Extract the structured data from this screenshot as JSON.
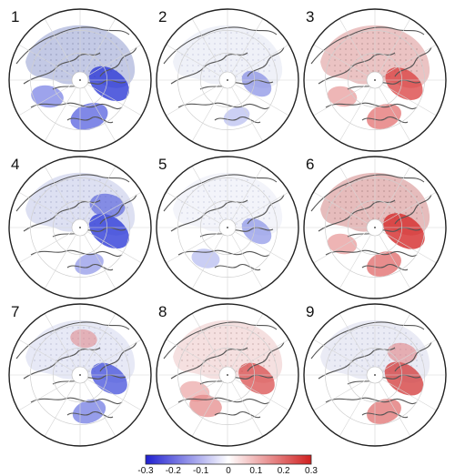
{
  "figure": {
    "panels": [
      {
        "label": "1",
        "ice_fill": "#b9bfe0",
        "dot_color": "#5c6289",
        "anomalies": [
          {
            "dir": "east",
            "color": "#2d3ad6",
            "strength": 0.9
          },
          {
            "dir": "south",
            "color": "#4a56dd",
            "strength": 0.7
          },
          {
            "dir": "west",
            "color": "#5b66df",
            "strength": 0.5
          }
        ]
      },
      {
        "label": "2",
        "ice_fill": "#eceef7",
        "dot_color": "#9aa0c2",
        "anomalies": [
          {
            "dir": "east",
            "color": "#6f79e0",
            "strength": 0.5
          },
          {
            "dir": "south",
            "color": "#9aa2ea",
            "strength": 0.3
          }
        ]
      },
      {
        "label": "3",
        "ice_fill": "#e7b8b8",
        "dot_color": "#7e5c5c",
        "anomalies": [
          {
            "dir": "east",
            "color": "#d93c3c",
            "strength": 0.8
          },
          {
            "dir": "south",
            "color": "#de5a5a",
            "strength": 0.6
          },
          {
            "dir": "west",
            "color": "#e07a7a",
            "strength": 0.4
          }
        ]
      },
      {
        "label": "4",
        "ice_fill": "#d7daf0",
        "dot_color": "#7a80a6",
        "anomalies": [
          {
            "dir": "east",
            "color": "#2f3cd8",
            "strength": 0.9
          },
          {
            "dir": "north-east",
            "color": "#5560dc",
            "strength": 0.6
          },
          {
            "dir": "south",
            "color": "#6b74e0",
            "strength": 0.4
          }
        ]
      },
      {
        "label": "5",
        "ice_fill": "#f1f2f9",
        "dot_color": "#a2a7c4",
        "anomalies": [
          {
            "dir": "east",
            "color": "#7680e2",
            "strength": 0.5
          },
          {
            "dir": "south-west",
            "color": "#9aa2ea",
            "strength": 0.35
          }
        ]
      },
      {
        "label": "6",
        "ice_fill": "#e2b0b0",
        "dot_color": "#7a5656",
        "anomalies": [
          {
            "dir": "east",
            "color": "#d52e2e",
            "strength": 0.95
          },
          {
            "dir": "south",
            "color": "#db5050",
            "strength": 0.6
          },
          {
            "dir": "west",
            "color": "#e07676",
            "strength": 0.4
          }
        ]
      },
      {
        "label": "7",
        "ice_fill": "#e3e5f4",
        "dot_color": "#8a90b4",
        "anomalies": [
          {
            "dir": "east",
            "color": "#3c48da",
            "strength": 0.75
          },
          {
            "dir": "south",
            "color": "#5964dd",
            "strength": 0.55
          },
          {
            "dir": "north",
            "color": "#e07a7a",
            "strength": 0.3
          }
        ]
      },
      {
        "label": "8",
        "ice_fill": "#f3dada",
        "dot_color": "#8c6a6a",
        "anomalies": [
          {
            "dir": "east",
            "color": "#d84646",
            "strength": 0.75
          },
          {
            "dir": "south-west",
            "color": "#e07070",
            "strength": 0.5
          },
          {
            "dir": "west",
            "color": "#e58a8a",
            "strength": 0.4
          }
        ]
      },
      {
        "label": "9",
        "ice_fill": "#e6e7f3",
        "dot_color": "#8a8fb0",
        "anomalies": [
          {
            "dir": "east",
            "color": "#d33a3a",
            "strength": 0.85
          },
          {
            "dir": "south",
            "color": "#dc5a5a",
            "strength": 0.6
          },
          {
            "dir": "north-east",
            "color": "#e07a7a",
            "strength": 0.4
          }
        ]
      }
    ],
    "colorbar": {
      "colors": [
        "#1f1fd0",
        "#ffffff",
        "#d01f1f"
      ],
      "ticks": [
        "-0.3",
        "-0.2",
        "-0.1",
        "0",
        "0.1",
        "0.2",
        "0.3"
      ]
    }
  }
}
